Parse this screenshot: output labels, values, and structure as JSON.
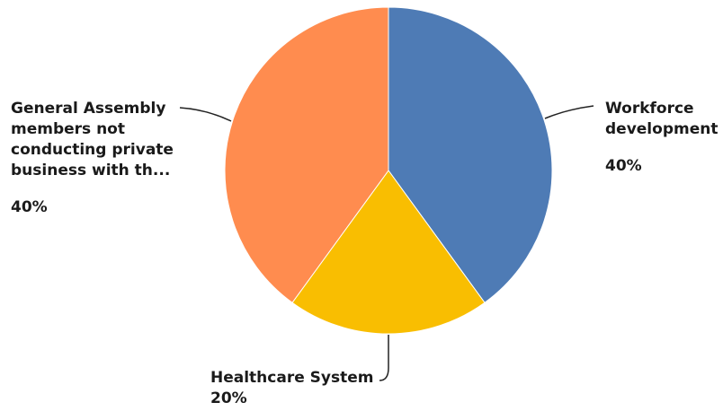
{
  "chart_data": {
    "type": "pie",
    "title": "",
    "slices": [
      {
        "label": "Workforce development",
        "value": 40,
        "value_label": "40%",
        "color": "#4E7BB5"
      },
      {
        "label": "Healthcare System",
        "value": 20,
        "value_label": "20%",
        "color": "#F9BE01"
      },
      {
        "label": "General Assembly members not conducting private business with th...",
        "value": 40,
        "value_label": "40%",
        "color": "#FF8C4F"
      }
    ],
    "start_angle_deg": 0,
    "direction": "clockwise",
    "legend": "none"
  }
}
